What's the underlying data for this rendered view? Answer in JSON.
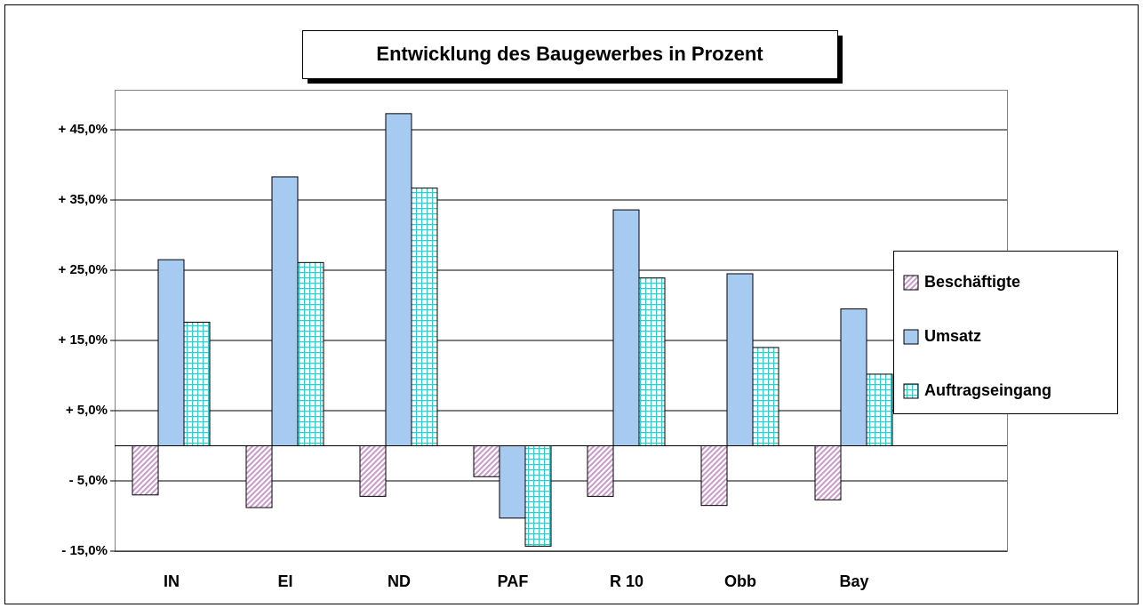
{
  "chart_data": {
    "type": "bar",
    "title": "Entwicklung des Baugewerbes in Prozent",
    "categories": [
      "IN",
      "EI",
      "ND",
      "PAF",
      "R 10",
      "Obb",
      "Bay"
    ],
    "series": [
      {
        "name": "Beschäftigte",
        "color": "#cc99cc",
        "values": [
          -7.0,
          -8.8,
          -7.2,
          -4.4,
          -7.2,
          -8.5,
          -7.7
        ]
      },
      {
        "name": "Umsatz",
        "color": "#a6caf0",
        "values": [
          26.5,
          38.3,
          47.3,
          -10.3,
          33.6,
          24.5,
          19.5
        ]
      },
      {
        "name": "Auftragseingang",
        "color": "#33cccc",
        "values": [
          17.6,
          26.1,
          36.7,
          -14.3,
          23.9,
          14.0,
          10.2
        ]
      }
    ],
    "ylim": [
      -15,
      50.7
    ],
    "yticks": [
      {
        "value": -15,
        "label": "- 15,0%"
      },
      {
        "value": -5,
        "label": "- 5,0%"
      },
      {
        "value": 5,
        "label": "+ 5,0%"
      },
      {
        "value": 15,
        "label": "+ 15,0%"
      },
      {
        "value": 25,
        "label": "+ 25,0%"
      },
      {
        "value": 35,
        "label": "+ 35,0%"
      },
      {
        "value": 45,
        "label": "+ 45,0%"
      }
    ],
    "grid": true
  }
}
